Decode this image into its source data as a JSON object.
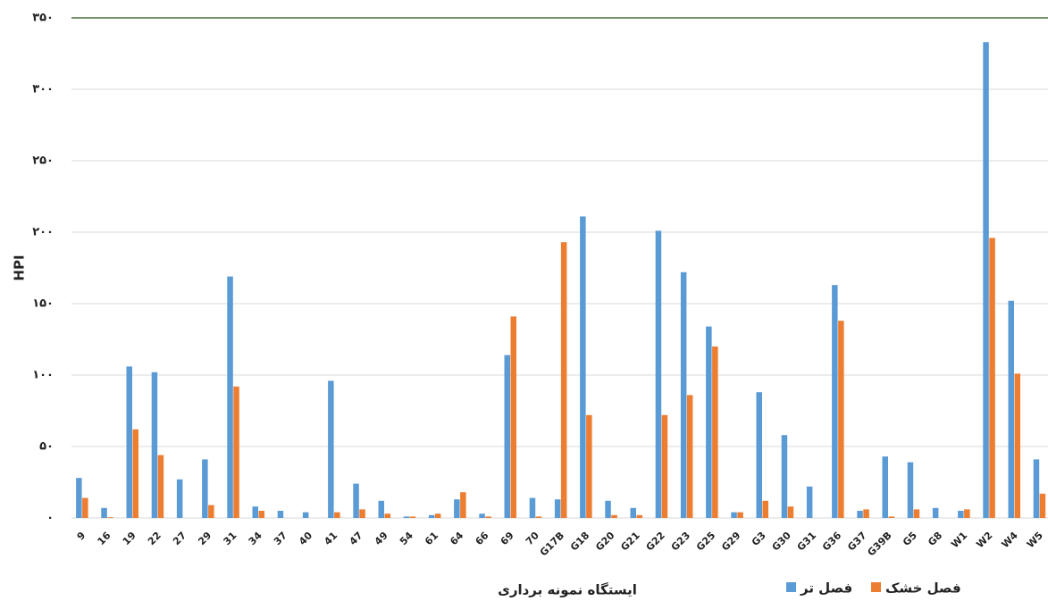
{
  "chart_data": {
    "type": "bar",
    "categories": [
      "9",
      "16",
      "19",
      "22",
      "27",
      "29",
      "31",
      "34",
      "37",
      "40",
      "41",
      "47",
      "49",
      "54",
      "61",
      "64",
      "66",
      "69",
      "70",
      "G17B",
      "G18",
      "G20",
      "G21",
      "G22",
      "G23",
      "G25",
      "G29",
      "G3",
      "G30",
      "G31",
      "G36",
      "G37",
      "G39B",
      "G5",
      "G8",
      "W1",
      "W2",
      "W4",
      "W5"
    ],
    "series": [
      {
        "name": "فصل تر",
        "color": "#5b9bd5",
        "values": [
          28,
          7,
          106,
          102,
          27,
          41,
          169,
          8,
          5,
          4,
          96,
          24,
          12,
          1,
          2,
          13,
          3,
          114,
          14,
          13,
          211,
          12,
          7,
          201,
          172,
          134,
          4,
          88,
          58,
          22,
          163,
          5,
          43,
          39,
          7,
          5,
          333,
          152,
          41
        ]
      },
      {
        "name": "فصل خشک",
        "color": "#ed7d31",
        "values": [
          14,
          0.5,
          62,
          44,
          0,
          9,
          92,
          5,
          0,
          0,
          4,
          6,
          3,
          1,
          3,
          18,
          1,
          141,
          1,
          193,
          72,
          2,
          2,
          72,
          86,
          120,
          4,
          12,
          8,
          0,
          138,
          6,
          1,
          6,
          0,
          6,
          196,
          101,
          17
        ]
      }
    ],
    "ylim": [
      0,
      350
    ],
    "yticks": [
      {
        "value": 0,
        "label": "۰"
      },
      {
        "value": 50,
        "label": "۵۰"
      },
      {
        "value": 100,
        "label": "۱۰۰"
      },
      {
        "value": 150,
        "label": "۱۵۰"
      },
      {
        "value": 200,
        "label": "۲۰۰"
      },
      {
        "value": 250,
        "label": "۲۵۰"
      },
      {
        "value": 300,
        "label": "۳۰۰"
      },
      {
        "value": 350,
        "label": "۳۵۰"
      }
    ],
    "grid": true,
    "y_label": "HPI",
    "x_label": "ایستگاه نمونه برداری"
  }
}
